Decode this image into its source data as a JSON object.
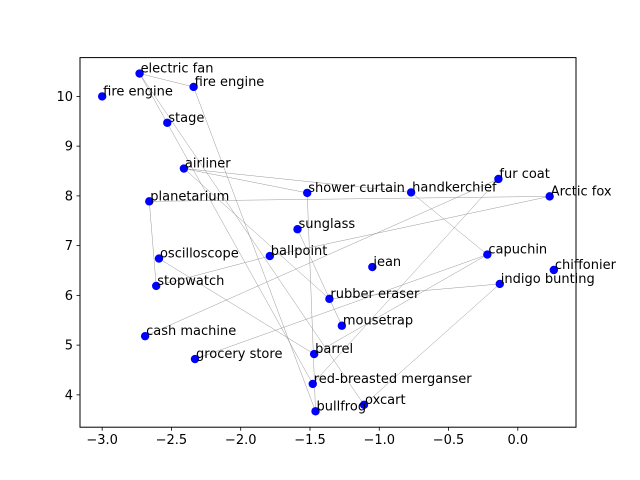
{
  "chart_data": {
    "type": "scatter",
    "title": "",
    "xlabel": "",
    "ylabel": "",
    "xlim": [
      -3.16,
      0.42
    ],
    "ylim": [
      3.35,
      10.78
    ],
    "xticks": [
      -3.0,
      -2.5,
      -2.0,
      -1.5,
      -1.0,
      -0.5,
      0.0
    ],
    "xtick_labels": [
      "−3.0",
      "−2.5",
      "−2.0",
      "−1.5",
      "−1.0",
      "−0.5",
      "0.0"
    ],
    "yticks": [
      4,
      5,
      6,
      7,
      8,
      9,
      10
    ],
    "ytick_labels": [
      "4",
      "5",
      "6",
      "7",
      "8",
      "9",
      "10"
    ],
    "grid": false,
    "marker_color": "#0000ff",
    "edge_color": "#808080",
    "points": [
      {
        "label": "electric fan",
        "x": -2.73,
        "y": 10.46
      },
      {
        "label": "fire engine",
        "x": -2.34,
        "y": 10.19
      },
      {
        "label": "fire engine",
        "x": -3.0,
        "y": 10.0
      },
      {
        "label": "stage",
        "x": -2.53,
        "y": 9.47
      },
      {
        "label": "airliner",
        "x": -2.41,
        "y": 8.55
      },
      {
        "label": "fur coat",
        "x": -0.14,
        "y": 8.34
      },
      {
        "label": "planetarium",
        "x": -2.66,
        "y": 7.89
      },
      {
        "label": "shower curtain",
        "x": -1.52,
        "y": 8.06
      },
      {
        "label": "handkerchief",
        "x": -0.77,
        "y": 8.07
      },
      {
        "label": "Arctic fox",
        "x": 0.23,
        "y": 7.99
      },
      {
        "label": "sunglass",
        "x": -1.59,
        "y": 7.33
      },
      {
        "label": "ballpoint",
        "x": -1.79,
        "y": 6.79
      },
      {
        "label": "oscilloscope",
        "x": -2.59,
        "y": 6.74
      },
      {
        "label": "capuchin",
        "x": -0.22,
        "y": 6.82
      },
      {
        "label": "jean",
        "x": -1.05,
        "y": 6.57
      },
      {
        "label": "chiffonier",
        "x": 0.26,
        "y": 6.51
      },
      {
        "label": "stopwatch",
        "x": -2.61,
        "y": 6.19
      },
      {
        "label": "indigo bunting",
        "x": -0.13,
        "y": 6.23
      },
      {
        "label": "rubber eraser",
        "x": -1.36,
        "y": 5.93
      },
      {
        "label": "mousetrap",
        "x": -1.27,
        "y": 5.39
      },
      {
        "label": "cash machine",
        "x": -2.69,
        "y": 5.18
      },
      {
        "label": "grocery store",
        "x": -2.33,
        "y": 4.72
      },
      {
        "label": "barrel",
        "x": -1.47,
        "y": 4.82
      },
      {
        "label": "red-breasted merganser",
        "x": -1.48,
        "y": 4.22
      },
      {
        "label": "oxcart",
        "x": -1.11,
        "y": 3.8
      },
      {
        "label": "bullfrog",
        "x": -1.46,
        "y": 3.67
      }
    ],
    "edges": [
      [
        "electric fan",
        "fire engine"
      ],
      [
        "electric fan",
        "red-breasted merganser"
      ],
      [
        "electric fan",
        "oxcart"
      ],
      [
        "fire engine",
        "bullfrog"
      ],
      [
        "airliner",
        "shower curtain"
      ],
      [
        "airliner",
        "rubber eraser"
      ],
      [
        "airliner",
        "handkerchief"
      ],
      [
        "planetarium",
        "Arctic fox"
      ],
      [
        "planetarium",
        "stopwatch"
      ],
      [
        "handkerchief",
        "capuchin"
      ],
      [
        "fur coat",
        "red-breasted merganser"
      ],
      [
        "fur coat",
        "cash machine"
      ],
      [
        "Arctic fox",
        "ballpoint"
      ],
      [
        "capuchin",
        "barrel"
      ],
      [
        "indigo bunting",
        "oxcart"
      ],
      [
        "indigo bunting",
        "rubber eraser"
      ],
      [
        "oscilloscope",
        "barrel"
      ],
      [
        "stopwatch",
        "ballpoint"
      ],
      [
        "sunglass",
        "mousetrap"
      ],
      [
        "shower curtain",
        "bullfrog"
      ],
      [
        "grocery store",
        "capuchin"
      ]
    ]
  }
}
